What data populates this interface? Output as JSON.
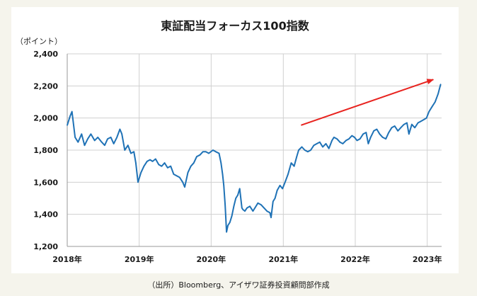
{
  "chart_data": {
    "type": "line",
    "title": "東証配当フォーカス100指数",
    "unit_label": "（ポイント）",
    "xlabel": "",
    "ylabel": "",
    "ylim": [
      1200,
      2400
    ],
    "y_ticks": [
      "1,200",
      "1,400",
      "1,600",
      "1,800",
      "2,000",
      "2,200",
      "2,400"
    ],
    "y_tick_values": [
      1200,
      1400,
      1600,
      1800,
      2000,
      2200,
      2400
    ],
    "xlim": [
      "2018-01-01",
      "2023-03-15"
    ],
    "x_ticks": [
      "2018年",
      "2019年",
      "2020年",
      "2021年",
      "2022年",
      "2023年"
    ],
    "x_tick_values": [
      "2018-01-01",
      "2019-01-01",
      "2020-01-01",
      "2021-01-01",
      "2022-01-01",
      "2023-01-01"
    ],
    "grid": "horizontal and vertical",
    "line_color": "#1f72b6",
    "arrow_color": "#e8231f",
    "annotation_arrow": {
      "from": [
        "2021-04-01",
        1955
      ],
      "to": [
        "2023-02-01",
        2240
      ]
    },
    "series": [
      {
        "x": [
          "2018-01-01",
          "2018-01-15",
          "2018-01-25",
          "2018-02-10",
          "2018-02-25",
          "2018-03-15",
          "2018-03-30",
          "2018-04-15",
          "2018-05-01",
          "2018-05-20",
          "2018-06-05",
          "2018-06-25",
          "2018-07-10",
          "2018-07-25",
          "2018-08-10",
          "2018-08-25",
          "2018-09-10",
          "2018-09-25",
          "2018-10-05",
          "2018-10-20",
          "2018-11-05",
          "2018-11-20",
          "2018-12-05",
          "2018-12-15",
          "2018-12-26",
          "2019-01-10",
          "2019-01-25",
          "2019-02-10",
          "2019-02-25",
          "2019-03-10",
          "2019-03-25",
          "2019-04-10",
          "2019-04-25",
          "2019-05-10",
          "2019-05-25",
          "2019-06-10",
          "2019-06-25",
          "2019-07-10",
          "2019-07-25",
          "2019-08-10",
          "2019-08-20",
          "2019-09-05",
          "2019-09-20",
          "2019-10-05",
          "2019-10-20",
          "2019-11-05",
          "2019-11-20",
          "2019-12-05",
          "2019-12-20",
          "2020-01-10",
          "2020-01-25",
          "2020-02-10",
          "2020-02-20",
          "2020-02-28",
          "2020-03-05",
          "2020-03-12",
          "2020-03-19",
          "2020-03-26",
          "2020-04-05",
          "2020-04-15",
          "2020-04-25",
          "2020-05-05",
          "2020-05-15",
          "2020-05-25",
          "2020-06-05",
          "2020-06-10",
          "2020-06-20",
          "2020-07-01",
          "2020-07-15",
          "2020-07-31",
          "2020-08-10",
          "2020-08-25",
          "2020-09-10",
          "2020-09-25",
          "2020-10-10",
          "2020-10-25",
          "2020-10-31",
          "2020-11-10",
          "2020-11-20",
          "2020-12-01",
          "2020-12-15",
          "2020-12-28",
          "2021-01-10",
          "2021-01-25",
          "2021-02-10",
          "2021-02-25",
          "2021-03-10",
          "2021-03-20",
          "2021-04-05",
          "2021-04-20",
          "2021-05-05",
          "2021-05-20",
          "2021-06-05",
          "2021-06-20",
          "2021-07-05",
          "2021-07-20",
          "2021-08-05",
          "2021-08-20",
          "2021-09-05",
          "2021-09-15",
          "2021-09-30",
          "2021-10-15",
          "2021-10-30",
          "2021-11-15",
          "2021-11-30",
          "2021-12-15",
          "2021-12-28",
          "2022-01-10",
          "2022-01-25",
          "2022-02-10",
          "2022-02-25",
          "2022-03-08",
          "2022-03-20",
          "2022-04-05",
          "2022-04-20",
          "2022-05-05",
          "2022-05-20",
          "2022-06-05",
          "2022-06-20",
          "2022-07-05",
          "2022-07-20",
          "2022-08-05",
          "2022-08-20",
          "2022-09-05",
          "2022-09-20",
          "2022-09-30",
          "2022-10-15",
          "2022-10-30",
          "2022-11-15",
          "2022-11-30",
          "2022-12-15",
          "2022-12-28",
          "2023-01-10",
          "2023-01-25",
          "2023-02-10",
          "2023-02-25",
          "2023-03-10"
        ],
        "values": [
          1955,
          2010,
          2040,
          1880,
          1850,
          1900,
          1830,
          1870,
          1900,
          1860,
          1880,
          1850,
          1830,
          1870,
          1880,
          1840,
          1880,
          1930,
          1900,
          1800,
          1830,
          1780,
          1790,
          1720,
          1600,
          1660,
          1700,
          1730,
          1740,
          1730,
          1745,
          1710,
          1700,
          1720,
          1690,
          1700,
          1650,
          1640,
          1630,
          1600,
          1570,
          1660,
          1700,
          1720,
          1760,
          1770,
          1790,
          1790,
          1780,
          1800,
          1790,
          1780,
          1720,
          1650,
          1580,
          1460,
          1290,
          1330,
          1350,
          1390,
          1450,
          1500,
          1520,
          1560,
          1440,
          1430,
          1420,
          1440,
          1450,
          1420,
          1440,
          1470,
          1460,
          1440,
          1420,
          1410,
          1380,
          1480,
          1500,
          1550,
          1580,
          1560,
          1600,
          1650,
          1720,
          1700,
          1760,
          1800,
          1820,
          1800,
          1790,
          1800,
          1830,
          1840,
          1850,
          1820,
          1840,
          1810,
          1860,
          1880,
          1870,
          1850,
          1840,
          1860,
          1870,
          1890,
          1880,
          1860,
          1870,
          1900,
          1910,
          1840,
          1880,
          1920,
          1930,
          1900,
          1880,
          1870,
          1910,
          1940,
          1950,
          1920,
          1940,
          1960,
          1970,
          1900,
          1960,
          1940,
          1970,
          1980,
          1990,
          2000,
          2040,
          2070,
          2100,
          2150,
          2210
        ]
      }
    ]
  },
  "source_note": "（出所）Bloomberg、アイザワ証券投資顧問部作成"
}
